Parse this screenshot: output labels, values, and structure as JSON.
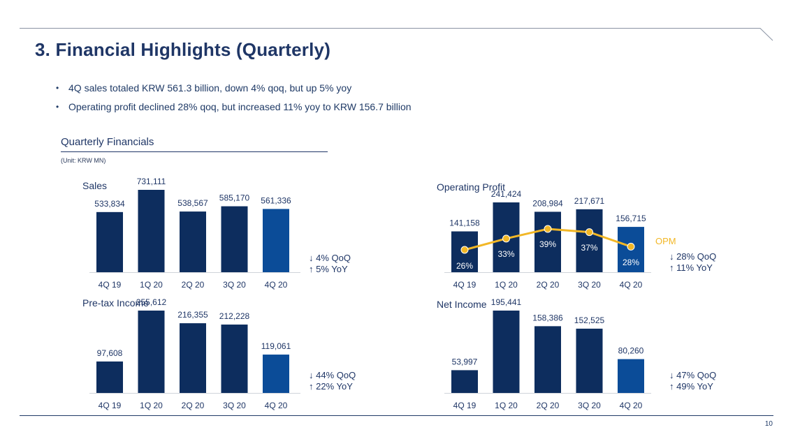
{
  "page": {
    "title": "3. Financial Highlights (Quarterly)",
    "bullets": [
      "4Q sales totaled KRW 561.3 billion, down 4% qoq, but up 5% yoy",
      "Operating profit declined 28% qoq, but increased 11% yoy to KRW 156.7 billion"
    ],
    "section_title": "Quarterly Financials",
    "unit": "(Unit: KRW MN)",
    "page_number": "10"
  },
  "colors": {
    "bar_dark": "#0d2d5e",
    "bar_highlight": "#0b4c98",
    "line": "#f2b726",
    "text": "#1f3666",
    "axis": "#d0d4da"
  },
  "chart_data": [
    {
      "type": "bar",
      "title": "Sales",
      "categories": [
        "4Q 19",
        "1Q 20",
        "2Q 20",
        "3Q 20",
        "4Q 20"
      ],
      "values": [
        533834,
        731111,
        538567,
        585170,
        561336
      ],
      "labels": [
        "533,834",
        "731,111",
        "538,567",
        "585,170",
        "561,336"
      ],
      "highlight_index": 4,
      "change": [
        "↓ 4% QoQ",
        "↑ 5% YoY"
      ]
    },
    {
      "type": "bar",
      "title": "Operating Profit",
      "categories": [
        "4Q 19",
        "1Q 20",
        "2Q 20",
        "3Q 20",
        "4Q 20"
      ],
      "values": [
        141158,
        241424,
        208984,
        217671,
        156715
      ],
      "labels": [
        "141,158",
        "241,424",
        "208,984",
        "217,671",
        "156,715"
      ],
      "highlight_index": 4,
      "change": [
        "↓ 28% QoQ",
        "↑ 11% YoY"
      ],
      "line_series": {
        "name": "OPM",
        "values": [
          26,
          33,
          39,
          37,
          28
        ],
        "labels": [
          "26%",
          "33%",
          "39%",
          "37%",
          "28%"
        ]
      }
    },
    {
      "type": "bar",
      "title": "Pre-tax Income",
      "categories": [
        "4Q 19",
        "1Q 20",
        "2Q 20",
        "3Q 20",
        "4Q 20"
      ],
      "values": [
        97608,
        255612,
        216355,
        212228,
        119061
      ],
      "labels": [
        "97,608",
        "255,612",
        "216,355",
        "212,228",
        "119,061"
      ],
      "highlight_index": 4,
      "change": [
        "↓ 44% QoQ",
        "↑ 22% YoY"
      ]
    },
    {
      "type": "bar",
      "title": "Net Income",
      "categories": [
        "4Q 19",
        "1Q 20",
        "2Q 20",
        "3Q 20",
        "4Q 20"
      ],
      "values": [
        53997,
        195441,
        158386,
        152525,
        80260
      ],
      "labels": [
        "53,997",
        "195,441",
        "158,386",
        "152,525",
        "80,260"
      ],
      "highlight_index": 4,
      "change": [
        "↓ 47% QoQ",
        "↑ 49% YoY"
      ]
    }
  ]
}
